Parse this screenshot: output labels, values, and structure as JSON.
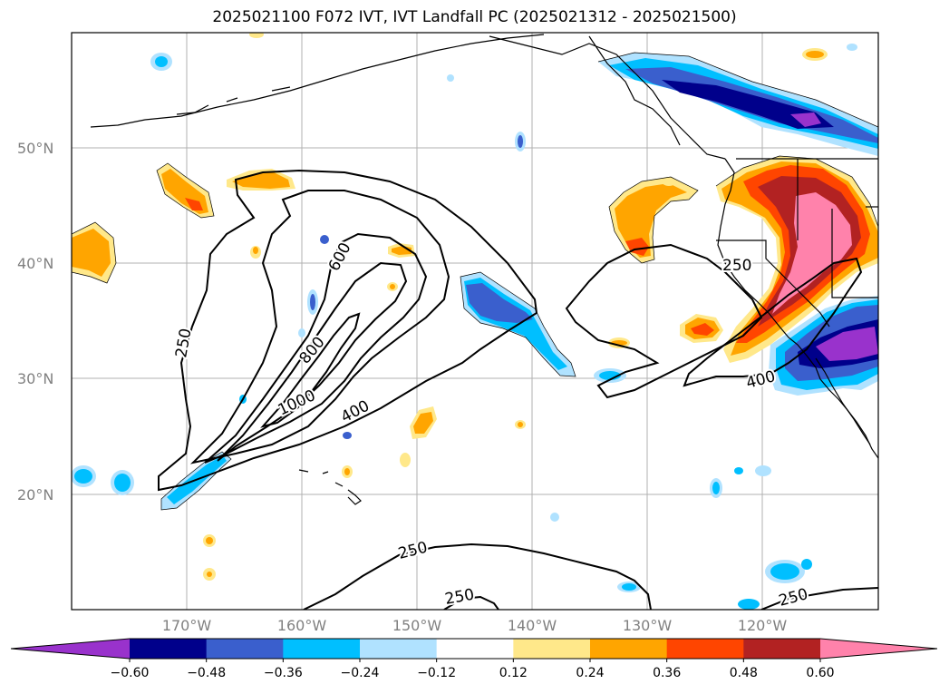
{
  "title": "2025021100 F072 IVT, IVT Landfall PC (2025021312 - 2025021500)",
  "lat_labels": [
    "50°N",
    "40°N",
    "30°N",
    "20°N"
  ],
  "lon_labels": [
    "170°W",
    "160°W",
    "150°W",
    "140°W",
    "130°W",
    "120°W"
  ],
  "contour_labels": {
    "c250_west": "250",
    "c600": "600",
    "c800": "800",
    "c1000": "1000",
    "c400_mid": "400",
    "c250_east": "250",
    "c400_east": "400",
    "c250_south": "250",
    "c250_south2": "250",
    "c250_se": "250"
  },
  "colorbar": {
    "ticks": [
      "−0.60",
      "−0.48",
      "−0.36",
      "−0.24",
      "−0.12",
      "0.12",
      "0.24",
      "0.36",
      "0.48",
      "0.60"
    ],
    "colors": [
      "#9932cc",
      "#00008b",
      "#3a5fcd",
      "#00bfff",
      "#b0e2ff",
      "#ffffff",
      "#ffe88a",
      "#ffa500",
      "#ff4500",
      "#b22222",
      "#ff82ab"
    ]
  }
}
